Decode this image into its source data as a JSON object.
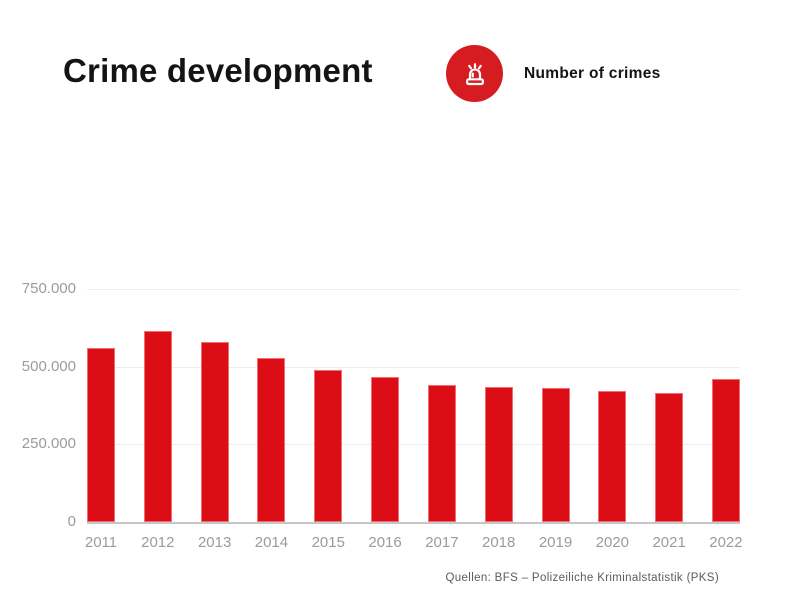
{
  "header": {
    "title": "Crime development",
    "legend_label": "Number of crimes",
    "legend_icon": "siren-icon",
    "accent_color": "#dc0d15",
    "badge_color": "#d61b21"
  },
  "footer": {
    "source": "Quellen: BFS – Polizeiliche Kriminalstatistik (PKS)"
  },
  "chart_data": {
    "type": "bar",
    "title": "Crime development",
    "series_name": "Number of crimes",
    "categories": [
      "2011",
      "2012",
      "2013",
      "2014",
      "2015",
      "2016",
      "2017",
      "2018",
      "2019",
      "2020",
      "2021",
      "2022"
    ],
    "values": [
      560000,
      615000,
      578000,
      527000,
      489000,
      467000,
      441000,
      433000,
      432000,
      423000,
      414000,
      459000
    ],
    "xlabel": "",
    "ylabel": "",
    "ylim": [
      0,
      750000
    ],
    "y_ticks": [
      {
        "value": 750000,
        "label": "750.000"
      },
      {
        "value": 500000,
        "label": "500.000"
      },
      {
        "value": 250000,
        "label": "250.000"
      },
      {
        "value": 0,
        "label": "0"
      }
    ],
    "grid": "horizontal-light",
    "legend_position": "top-right-of-title",
    "bar_color": "#dc0d15",
    "axis_label_color": "#9b9b9b"
  }
}
